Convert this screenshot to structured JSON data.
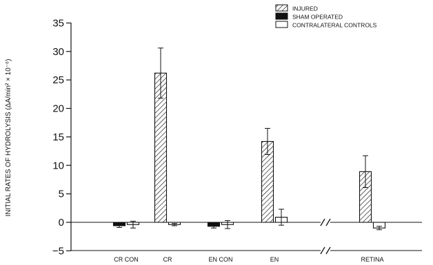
{
  "chart_data": {
    "type": "bar",
    "ylabel": "INITIAL RATES OF HYDROLYSIS (ΔA/min² × 10⁻⁶)",
    "ylim": [
      -5,
      35
    ],
    "yticks": [
      -5,
      0,
      5,
      10,
      15,
      20,
      25,
      30,
      35
    ],
    "ytick_labels": [
      "−5",
      "0",
      "5",
      "10",
      "15",
      "20",
      "25",
      "30",
      "35"
    ],
    "categories": [
      "CR CON",
      "CR",
      "EN CON",
      "EN",
      "RETINA"
    ],
    "axis_break_marks": [
      "//",
      "//"
    ],
    "legend_position": "top-right",
    "series": [
      {
        "name": "INJURED",
        "fill": "hatched",
        "color": "#000000",
        "values": [
          null,
          26.2,
          null,
          14.2,
          8.9
        ],
        "errors": [
          null,
          4.4,
          null,
          2.3,
          2.8
        ]
      },
      {
        "name": "SHAM OPERATED",
        "fill": "solid",
        "color": "#000000",
        "values": [
          -0.6,
          null,
          -0.7,
          null,
          null
        ],
        "errors": [
          0.3,
          null,
          0.3,
          null,
          null
        ]
      },
      {
        "name": "CONTRALATERAL CONTROLS",
        "fill": "open",
        "color": "#ffffff",
        "values": [
          -0.4,
          -0.4,
          -0.4,
          0.9,
          -1.0
        ],
        "errors": [
          0.6,
          0.2,
          0.7,
          1.4,
          0.3
        ]
      }
    ]
  }
}
